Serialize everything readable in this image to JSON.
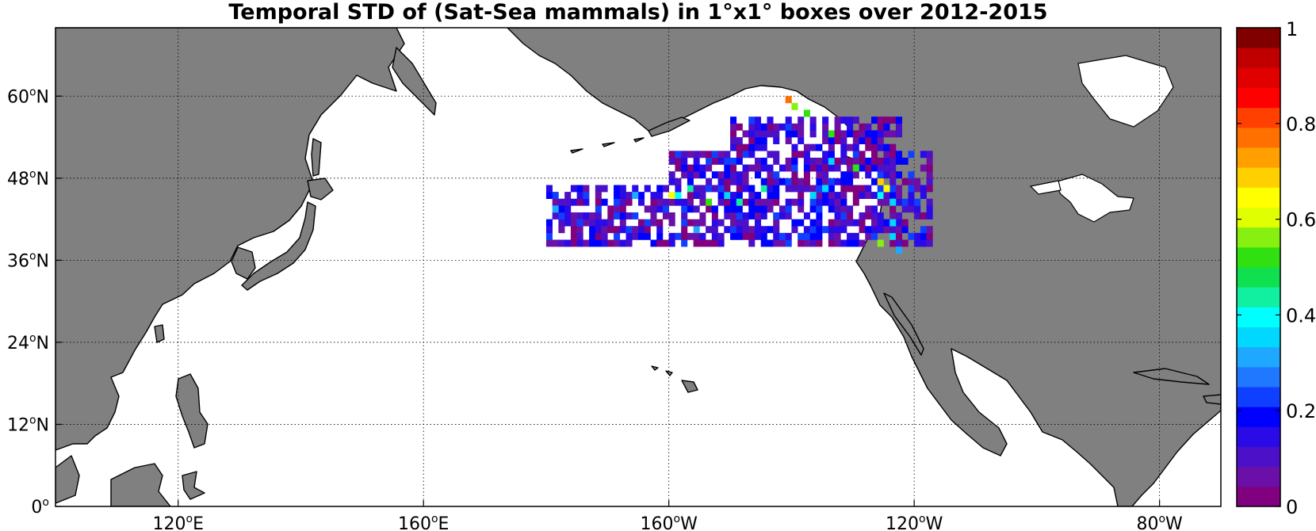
{
  "title": "Temporal STD of (Sat-Sea mammals) in 1°x1° boxes over 2012-2015",
  "map": {
    "lon_range": [
      100,
      290
    ],
    "lat_range": [
      0,
      70
    ],
    "x_ticks": [
      {
        "lon": 120,
        "deg": "120",
        "hemi": "E"
      },
      {
        "lon": 160,
        "deg": "160",
        "hemi": "E"
      },
      {
        "lon": 200,
        "deg": "160",
        "hemi": "W"
      },
      {
        "lon": 240,
        "deg": "120",
        "hemi": "W"
      },
      {
        "lon": 280,
        "deg": "80",
        "hemi": "W"
      }
    ],
    "y_ticks": [
      {
        "lat": 0,
        "deg": "0",
        "hemi": ""
      },
      {
        "lat": 12,
        "deg": "12",
        "hemi": "N"
      },
      {
        "lat": 24,
        "deg": "24",
        "hemi": "N"
      },
      {
        "lat": 36,
        "deg": "36",
        "hemi": "N"
      },
      {
        "lat": 48,
        "deg": "48",
        "hemi": "N"
      },
      {
        "lat": 60,
        "deg": "60",
        "hemi": "N"
      }
    ],
    "gridlines": true,
    "land_color": "#808080",
    "ocean_color": "#ffffff"
  },
  "colorbar": {
    "range": [
      0,
      1
    ],
    "ticks": [
      "0",
      "0.2",
      "0.4",
      "0.6",
      "0.8",
      "1"
    ],
    "colors": [
      "#800080",
      "#6a10a8",
      "#4b10c8",
      "#2a0ae6",
      "#0000ff",
      "#1040ff",
      "#1f78ff",
      "#1fa8ff",
      "#00d8ff",
      "#00ffff",
      "#10f0a0",
      "#10e050",
      "#30e010",
      "#88f010",
      "#e0ff00",
      "#ffff00",
      "#ffd000",
      "#ffa000",
      "#ff7000",
      "#ff4000",
      "#ff0000",
      "#e00000",
      "#c00000",
      "#800000"
    ],
    "placement": "right"
  },
  "chart_data": {
    "type": "heatmap",
    "title": "Temporal STD of (Sat-Sea mammals) in 1°x1° boxes over 2012-2015",
    "units_note": "cell value = STD, colour scale 0 to 1",
    "cell_size_deg": 1,
    "colorbar_range": [
      0,
      1
    ],
    "clusters": [
      {
        "lon_range": [
          180,
          243
        ],
        "lat_range": [
          38,
          47
        ],
        "typical_value": 0.12
      },
      {
        "lon_range": [
          200,
          243
        ],
        "lat_range": [
          47,
          52
        ],
        "typical_value": 0.12
      },
      {
        "lon_range": [
          210,
          238
        ],
        "lat_range": [
          52,
          57
        ],
        "typical_value": 0.1
      }
    ],
    "notable_cells": [
      {
        "lon": 219,
        "lat": 59,
        "value": 0.75
      },
      {
        "lon": 220,
        "lat": 58,
        "value": 0.55
      },
      {
        "lon": 222,
        "lat": 57,
        "value": 0.5
      },
      {
        "lon": 226,
        "lat": 54,
        "value": 0.5
      },
      {
        "lon": 234,
        "lat": 47,
        "value": 0.7
      },
      {
        "lon": 235,
        "lat": 46,
        "value": 0.65
      },
      {
        "lon": 234,
        "lat": 45,
        "value": 0.4
      },
      {
        "lon": 236,
        "lat": 44,
        "value": 0.35
      },
      {
        "lon": 236,
        "lat": 41,
        "value": 0.35
      },
      {
        "lon": 236,
        "lat": 39,
        "value": 0.35
      },
      {
        "lon": 237,
        "lat": 37,
        "value": 0.3
      },
      {
        "lon": 234,
        "lat": 38,
        "value": 0.55
      },
      {
        "lon": 200,
        "lat": 45,
        "value": 0.65
      },
      {
        "lon": 201,
        "lat": 45,
        "value": 0.4
      },
      {
        "lon": 203,
        "lat": 46,
        "value": 0.45
      },
      {
        "lon": 206,
        "lat": 44,
        "value": 0.5
      },
      {
        "lon": 211,
        "lat": 44,
        "value": 0.45
      },
      {
        "lon": 209,
        "lat": 45,
        "value": 0.35
      },
      {
        "lon": 215,
        "lat": 46,
        "value": 0.45
      },
      {
        "lon": 223,
        "lat": 45,
        "value": 0.35
      },
      {
        "lon": 225,
        "lat": 46,
        "value": 0.35
      },
      {
        "lon": 226,
        "lat": 50,
        "value": 0.35
      },
      {
        "lon": 230,
        "lat": 49,
        "value": 0.5
      },
      {
        "lon": 194,
        "lat": 45,
        "value": 0.3
      },
      {
        "lon": 181,
        "lat": 43,
        "value": 0.3
      },
      {
        "lon": 204,
        "lat": 40,
        "value": 0.3
      }
    ]
  }
}
